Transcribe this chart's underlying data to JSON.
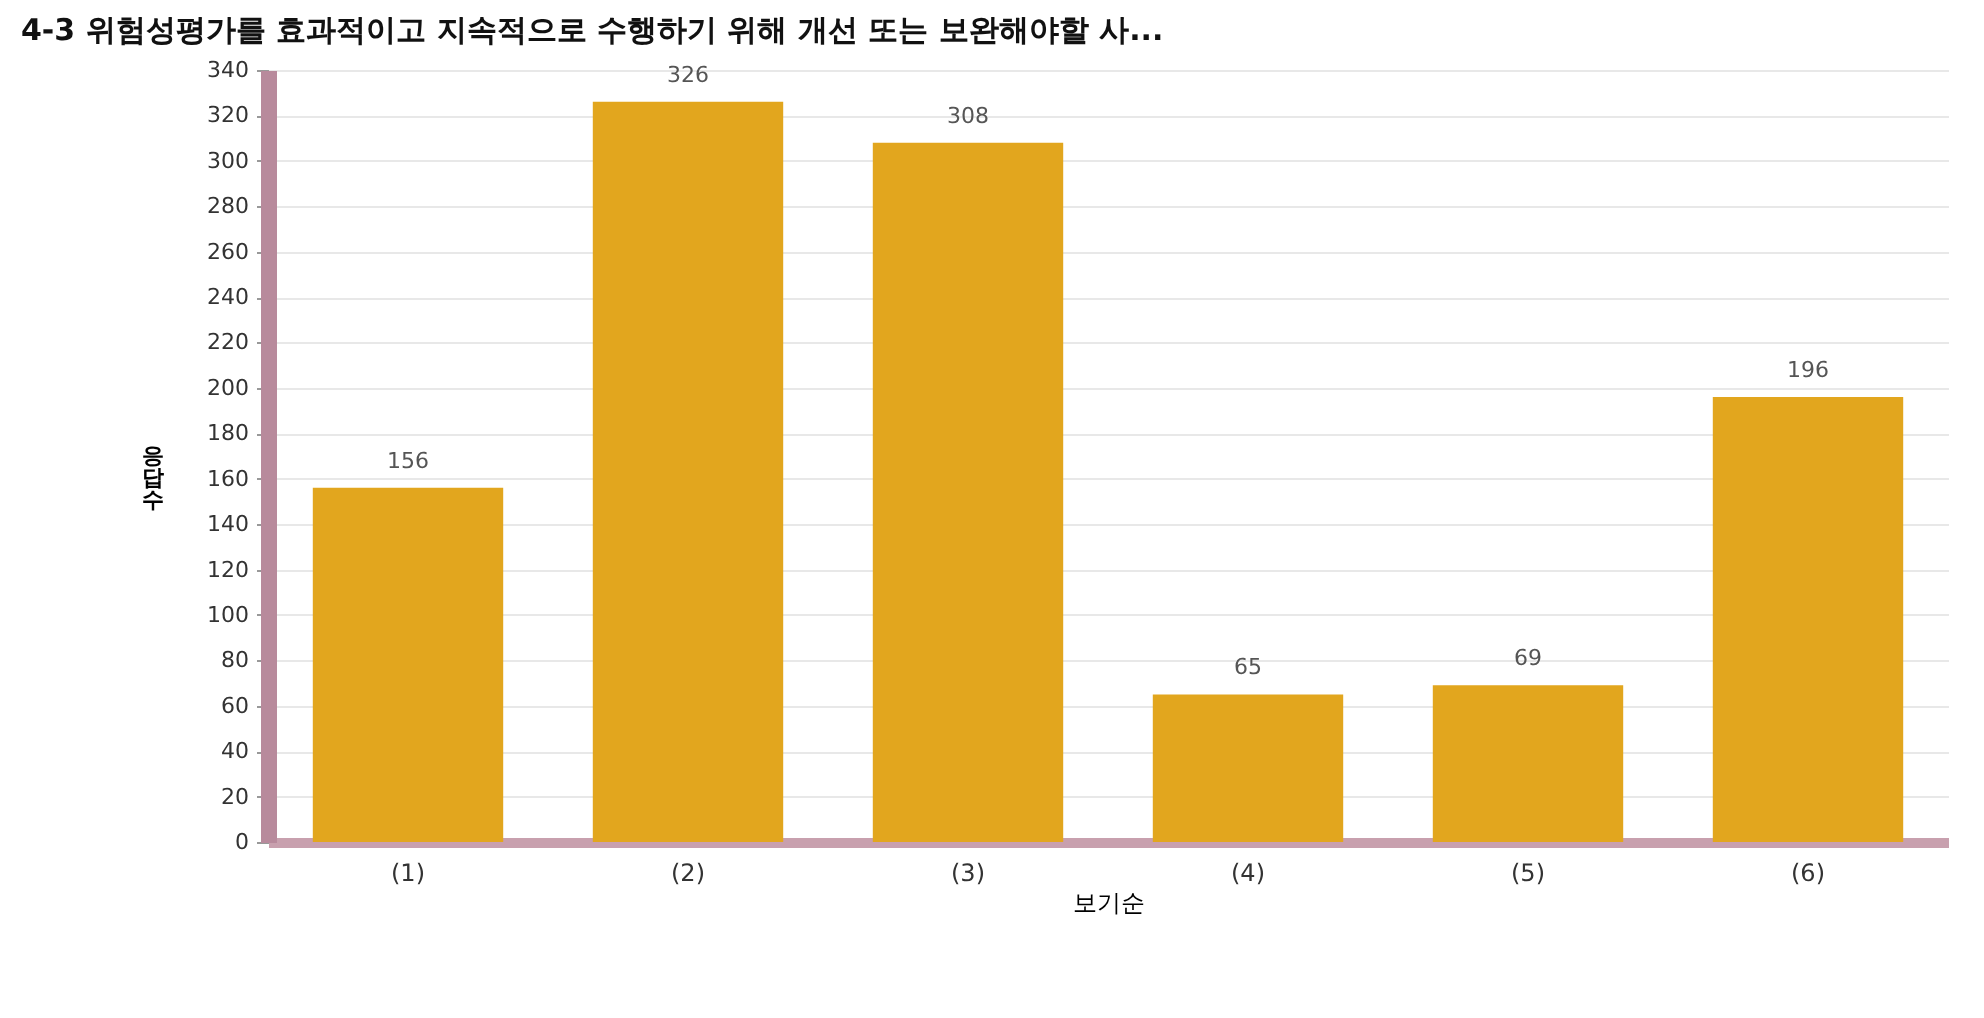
{
  "chart_data": {
    "type": "bar",
    "title": "4-3 위험성평가를 효과적이고 지속적으로 수행하기 위해 개선 또는 보완해야할 사...",
    "xlabel": "보기순",
    "ylabel": "응답수",
    "categories": [
      "(1)",
      "(2)",
      "(3)",
      "(4)",
      "(5)",
      "(6)"
    ],
    "values": [
      156,
      326,
      308,
      65,
      69,
      196
    ],
    "color": "#e2a61e",
    "ylim": [
      0,
      340
    ],
    "yticks": [
      0,
      20,
      40,
      60,
      80,
      100,
      120,
      140,
      160,
      180,
      200,
      220,
      240,
      260,
      280,
      300,
      320,
      340
    ],
    "grid": "y",
    "data_labels": true
  }
}
